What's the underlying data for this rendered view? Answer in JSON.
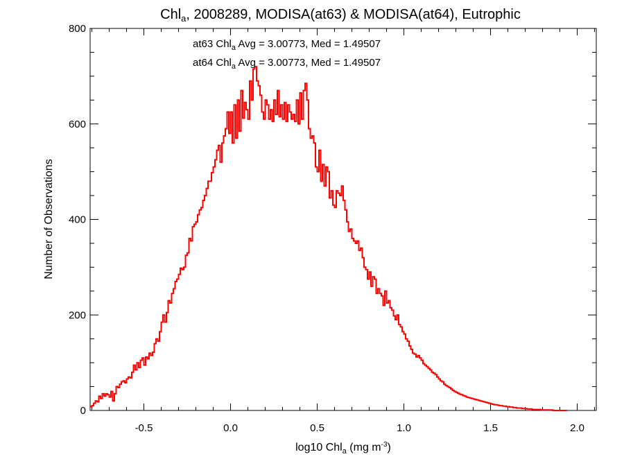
{
  "chart_data": {
    "type": "histogram",
    "title": {
      "prefix": "Chl",
      "subscript": "a",
      "suffix": ", 2008289, MODISA(at63) & MODISA(at64), Eutrophic"
    },
    "xlabel": {
      "prefix": "log10 Chl",
      "subscript": "a",
      "middle": " (mg m",
      "superscript": "-3",
      "suffix": ")"
    },
    "ylabel": "Number of Observations",
    "xlim": [
      -0.81,
      2.11
    ],
    "ylim": [
      0,
      800
    ],
    "x_ticks": [
      -0.5,
      0.0,
      0.5,
      1.0,
      1.5,
      2.0
    ],
    "x_tick_labels": [
      "-0.5",
      "0.0",
      "0.5",
      "1.0",
      "1.5",
      "2.0"
    ],
    "y_ticks": [
      0,
      200,
      400,
      600,
      800
    ],
    "y_tick_labels": [
      "0",
      "200",
      "400",
      "600",
      "800"
    ],
    "grid": false,
    "annotations": [
      {
        "prefix": "at63 Chl",
        "subscript": "a",
        "suffix": " Avg = 3.00773, Med = 1.49507",
        "color": "#000000"
      },
      {
        "prefix": "at64 Chl",
        "subscript": "a",
        "suffix": " Avg = 3.00773, Med = 1.49507",
        "color": "#ff0000"
      }
    ],
    "series": [
      {
        "color": "#ff0000",
        "bin_width": 0.01,
        "x_start": -0.81,
        "values": [
          8,
          10,
          15,
          20,
          18,
          30,
          25,
          35,
          30,
          35,
          33,
          28,
          40,
          20,
          35,
          50,
          48,
          55,
          60,
          62,
          58,
          66,
          70,
          68,
          80,
          95,
          85,
          100,
          90,
          105,
          110,
          95,
          112,
          108,
          120,
          115,
          122,
          140,
          150,
          145,
          165,
          185,
          200,
          185,
          205,
          230,
          225,
          245,
          255,
          270,
          275,
          285,
          298,
          295,
          300,
          325,
          330,
          360,
          355,
          385,
          390,
          395,
          410,
          420,
          425,
          440,
          450,
          465,
          480,
          480,
          498,
          510,
          525,
          545,
          555,
          520,
          560,
          575,
          590,
          625,
          580,
          625,
          560,
          640,
          570,
          650,
          585,
          670,
          612,
          645,
          630,
          610,
          690,
          650,
          715,
          720,
          690,
          680,
          660,
          625,
          610,
          650,
          640,
          610,
          630,
          605,
          650,
          620,
          670,
          615,
          640,
          610,
          645,
          605,
          640,
          625,
          610,
          620,
          605,
          650,
          600,
          665,
          610,
          670,
          685,
          650,
          590,
          570,
          575,
          560,
          510,
          500,
          545,
          480,
          515,
          470,
          510,
          500,
          445,
          460,
          430,
          425,
          460,
          455,
          450,
          470,
          440,
          420,
          395,
          375,
          380,
          360,
          355,
          350,
          355,
          335,
          340,
          320,
          300,
          295,
          275,
          290,
          260,
          280,
          275,
          245,
          255,
          245,
          240,
          220,
          250,
          225,
          230,
          215,
          210,
          198,
          190,
          200,
          180,
          175,
          165,
          160,
          150,
          145,
          135,
          128,
          120,
          118,
          112,
          115,
          110,
          105,
          98,
          95,
          92,
          88,
          85,
          80,
          78,
          75,
          70,
          66,
          62,
          60,
          55,
          52,
          50,
          48,
          45,
          42,
          40,
          38,
          36,
          34,
          33,
          31,
          30,
          28,
          27,
          26,
          25,
          24,
          23,
          22,
          21,
          20,
          19,
          18,
          17,
          16,
          15,
          14,
          13,
          12,
          12,
          11,
          10,
          10,
          9,
          9,
          8,
          8,
          7,
          7,
          6,
          6,
          5,
          5,
          5,
          4,
          4,
          4,
          3,
          3,
          3,
          2,
          2,
          2,
          2,
          2,
          1,
          1,
          1,
          1,
          1,
          1,
          1,
          0,
          0,
          0,
          0,
          0,
          0,
          0,
          0
        ]
      }
    ]
  }
}
